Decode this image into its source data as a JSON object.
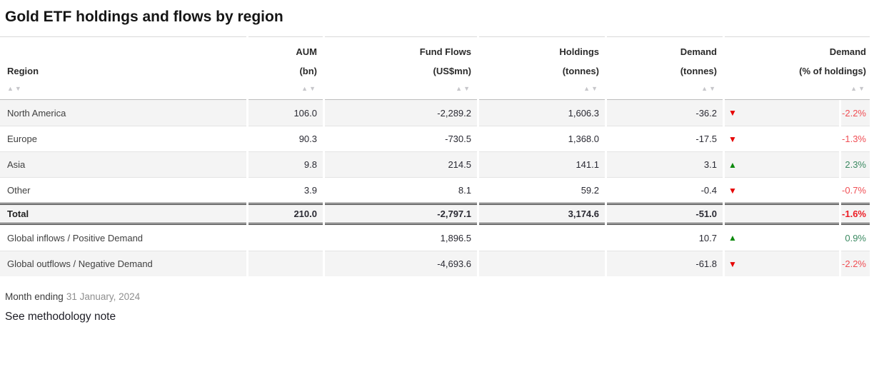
{
  "page": {
    "title": "Gold ETF holdings and flows by region",
    "footer": {
      "month_label": "Month ending",
      "month_value": "31 January, 2024",
      "methodology_link": "See methodology note"
    }
  },
  "table": {
    "columns": [
      {
        "key": "region",
        "line1": " ",
        "line2": "Region"
      },
      {
        "key": "aum",
        "line1": "AUM",
        "line2": "(bn)"
      },
      {
        "key": "fund_flows",
        "line1": "Fund Flows",
        "line2": "(US$mn)"
      },
      {
        "key": "holdings",
        "line1": "Holdings",
        "line2": "(tonnes)"
      },
      {
        "key": "demand_tonnes",
        "line1": "Demand",
        "line2": "(tonnes)"
      },
      {
        "key": "demand_pct",
        "line1": "Demand",
        "line2": "(% of holdings)"
      }
    ],
    "sort_icons": {
      "asc": "▲",
      "desc": "▼"
    },
    "arrow_icons": {
      "up": "▲",
      "down": "▼"
    },
    "rows": [
      {
        "region": "North America",
        "aum": "106.0",
        "fund_flows": "-2,289.2",
        "holdings": "1,606.3",
        "demand": "-36.2",
        "direction": "down",
        "pct": "-2.2%",
        "shaded": true
      },
      {
        "region": "Europe",
        "aum": "90.3",
        "fund_flows": "-730.5",
        "holdings": "1,368.0",
        "demand": "-17.5",
        "direction": "down",
        "pct": "-1.3%",
        "shaded": false
      },
      {
        "region": "Asia",
        "aum": "9.8",
        "fund_flows": "214.5",
        "holdings": "141.1",
        "demand": "3.1",
        "direction": "up",
        "pct": "2.3%",
        "shaded": true
      },
      {
        "region": "Other",
        "aum": "3.9",
        "fund_flows": "8.1",
        "holdings": "59.2",
        "demand": "-0.4",
        "direction": "down",
        "pct": "-0.7%",
        "shaded": false
      }
    ],
    "total_row": {
      "region": "Total",
      "aum": "210.0",
      "fund_flows": "-2,797.1",
      "holdings": "3,174.6",
      "demand": "-51.0",
      "direction": "",
      "pct": "-1.6%",
      "shaded": true
    },
    "summary_rows": [
      {
        "region": "Global inflows / Positive Demand",
        "aum": "",
        "fund_flows": "1,896.5",
        "holdings": "",
        "demand": "10.7",
        "direction": "up",
        "pct": "0.9%",
        "shaded": false
      },
      {
        "region": "Global outflows / Negative Demand",
        "aum": "",
        "fund_flows": "-4,693.6",
        "holdings": "",
        "demand": "-61.8",
        "direction": "down",
        "pct": "-2.2%",
        "shaded": true
      }
    ]
  },
  "colors": {
    "row_shade": "#f4f4f4",
    "arrow_up_green": "#0f8a0f",
    "arrow_down_red": "#e60000",
    "pct_positive_green": "#3c8a62",
    "pct_negative_red": "#f04f55",
    "total_pct_red": "#ed1c24",
    "sort_arrow_gray": "#c6c6ca",
    "double_rule": "#2e2e2e"
  },
  "chart_data": {
    "type": "table",
    "title": "Gold ETF holdings and flows by region",
    "columns": [
      "Region",
      "AUM (bn)",
      "Fund Flows (US$mn)",
      "Holdings (tonnes)",
      "Demand (tonnes)",
      "Demand (% of holdings)"
    ],
    "rows": [
      [
        "North America",
        106.0,
        -2289.2,
        1606.3,
        -36.2,
        -2.2
      ],
      [
        "Europe",
        90.3,
        -730.5,
        1368.0,
        -17.5,
        -1.3
      ],
      [
        "Asia",
        9.8,
        214.5,
        141.1,
        3.1,
        2.3
      ],
      [
        "Other",
        3.9,
        8.1,
        59.2,
        -0.4,
        -0.7
      ],
      [
        "Total",
        210.0,
        -2797.1,
        3174.6,
        -51.0,
        -1.6
      ],
      [
        "Global inflows / Positive Demand",
        null,
        1896.5,
        null,
        10.7,
        0.9
      ],
      [
        "Global outflows / Negative Demand",
        null,
        -4693.6,
        null,
        -61.8,
        -2.2
      ]
    ],
    "note": "Month ending 31 January, 2024"
  }
}
